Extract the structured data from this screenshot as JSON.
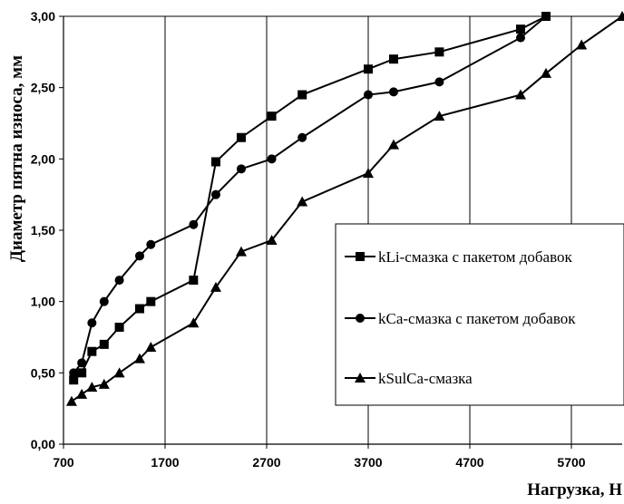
{
  "chart_data": {
    "type": "line",
    "title": "",
    "xlabel": "Нагрузка, Н",
    "ylabel": "Диаметр пятна износа, мм",
    "xlim": [
      700,
      6200
    ],
    "ylim": [
      0,
      3
    ],
    "x_ticks": [
      "700",
      "1700",
      "2700",
      "3700",
      "4700",
      "5700"
    ],
    "y_ticks": [
      "0,00",
      "0,50",
      "1,00",
      "1,50",
      "2,00",
      "2,50",
      "3,00"
    ],
    "grid": "vertical",
    "legend_position": "right",
    "series": [
      {
        "name": "kLi-смазка с пакетом добавок",
        "marker": "square",
        "x": [
          800,
          880,
          980,
          1100,
          1250,
          1450,
          1560,
          1980,
          2200,
          2450,
          2750,
          3050,
          3700,
          3950,
          4400,
          5200,
          5450
        ],
        "y": [
          0.45,
          0.5,
          0.65,
          0.7,
          0.82,
          0.95,
          1.0,
          1.15,
          1.98,
          2.15,
          2.3,
          2.45,
          2.63,
          2.7,
          2.75,
          2.91,
          3.0
        ]
      },
      {
        "name": "kCa-смазка с пакетом добавок",
        "marker": "circle",
        "x": [
          800,
          880,
          980,
          1100,
          1250,
          1450,
          1560,
          1980,
          2200,
          2450,
          2750,
          3050,
          3700,
          3950,
          4400,
          5200,
          5450
        ],
        "y": [
          0.5,
          0.57,
          0.85,
          1.0,
          1.15,
          1.32,
          1.4,
          1.54,
          1.75,
          1.93,
          2.0,
          2.15,
          2.45,
          2.47,
          2.54,
          2.85,
          3.0
        ]
      },
      {
        "name": "kSulCa-смазка",
        "marker": "triangle",
        "x": [
          780,
          880,
          980,
          1100,
          1250,
          1450,
          1560,
          1980,
          2200,
          2450,
          2750,
          3050,
          3700,
          3950,
          4400,
          5200,
          5450,
          5800,
          6200
        ],
        "y": [
          0.3,
          0.35,
          0.4,
          0.42,
          0.5,
          0.6,
          0.68,
          0.85,
          1.1,
          1.35,
          1.43,
          1.7,
          1.9,
          2.1,
          2.3,
          2.45,
          2.6,
          2.8,
          3.0
        ]
      }
    ]
  }
}
